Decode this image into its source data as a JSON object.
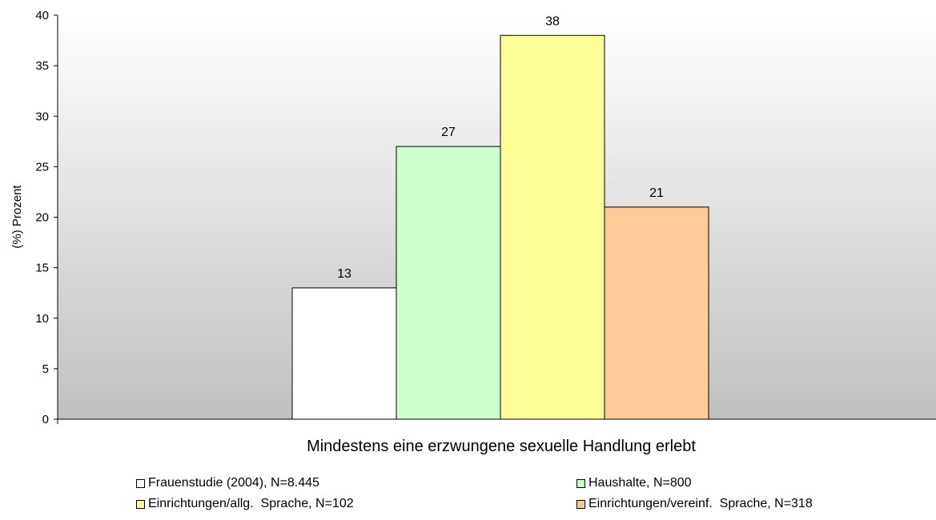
{
  "chart_data": {
    "type": "bar",
    "categories": [
      "Mindestens eine erzwungene sexuelle Handlung erlebt"
    ],
    "series": [
      {
        "name": "Frauenstudie (2004), N=8.445",
        "values": [
          13
        ],
        "color": "#ffffff"
      },
      {
        "name": "Haushalte, N=800",
        "values": [
          27
        ],
        "color": "#ccffcc"
      },
      {
        "name": "Einrichtungen/allg.  Sprache, N=102",
        "values": [
          38
        ],
        "color": "#ffff99"
      },
      {
        "name": "Einrichtungen/vereinf.  Sprache, N=318",
        "values": [
          21
        ],
        "color": "#ffcc99"
      }
    ],
    "data_labels": [
      "13",
      "27",
      "38",
      "21"
    ],
    "ylabel": "(%) Prozent",
    "xlabel": "",
    "ylim": [
      0,
      40
    ],
    "yticks": [
      "0",
      "5",
      "10",
      "15",
      "20",
      "25",
      "30",
      "35",
      "40"
    ],
    "grid": false,
    "legend_position": "bottom",
    "background_gradient": [
      "#ffffff",
      "#c0c0c0"
    ]
  }
}
